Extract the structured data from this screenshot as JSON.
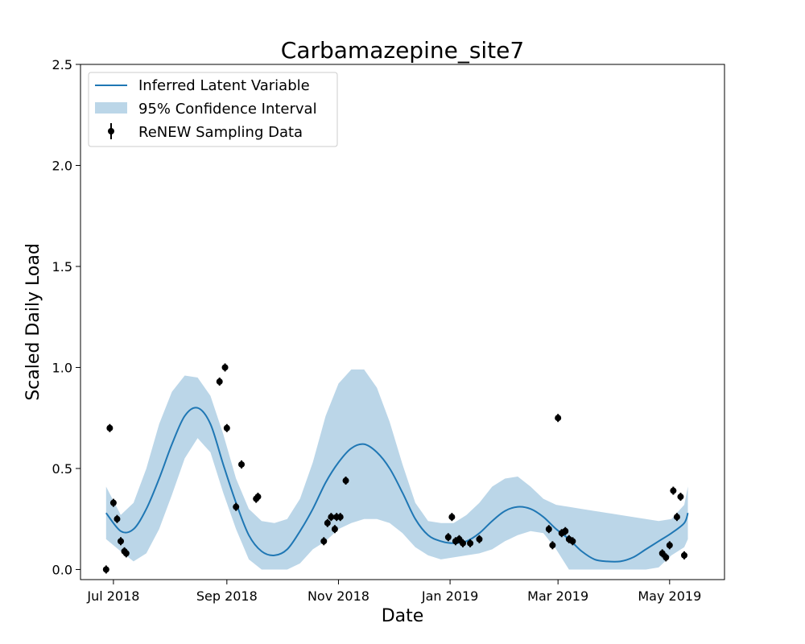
{
  "chart_data": {
    "type": "line",
    "title": "Carbamazepine_site7",
    "xlabel": "Date",
    "ylabel": "Scaled Daily Load",
    "xlim": [
      "2018-06-13",
      "2019-05-31"
    ],
    "ylim": [
      -0.05,
      2.5
    ],
    "x_ticks": [
      "2018-07-01",
      "2018-09-01",
      "2018-11-01",
      "2019-01-01",
      "2019-03-01",
      "2019-05-01"
    ],
    "x_tick_labels": [
      "Jul 2018",
      "Sep 2018",
      "Nov 2018",
      "Jan 2019",
      "Mar 2019",
      "May 2019"
    ],
    "y_ticks": [
      0.0,
      0.5,
      1.0,
      1.5,
      2.0,
      2.5
    ],
    "y_tick_labels": [
      "0.0",
      "0.5",
      "1.0",
      "1.5",
      "2.0",
      "2.5"
    ],
    "grid": false,
    "legend_position": "top-left",
    "colors": {
      "latent": "#1f77b4",
      "band": "#1f77b4",
      "data": "#000000"
    },
    "legend": [
      {
        "label": "Inferred Latent Variable",
        "kind": "line"
      },
      {
        "label": "95% Confidence Interval",
        "kind": "band"
      },
      {
        "label": "ReNEW Sampling Data",
        "kind": "errorbar"
      }
    ],
    "series": [
      {
        "name": "Inferred Latent Variable",
        "type": "line",
        "x": [
          "2018-06-27",
          "2018-07-05",
          "2018-07-12",
          "2018-07-19",
          "2018-07-26",
          "2018-08-02",
          "2018-08-09",
          "2018-08-16",
          "2018-08-23",
          "2018-08-30",
          "2018-09-06",
          "2018-09-13",
          "2018-09-20",
          "2018-09-27",
          "2018-10-04",
          "2018-10-11",
          "2018-10-18",
          "2018-10-25",
          "2018-11-01",
          "2018-11-08",
          "2018-11-15",
          "2018-11-22",
          "2018-11-29",
          "2018-12-06",
          "2018-12-13",
          "2018-12-20",
          "2018-12-27",
          "2019-01-03",
          "2019-01-10",
          "2019-01-17",
          "2019-01-24",
          "2019-01-31",
          "2019-02-07",
          "2019-02-14",
          "2019-02-21",
          "2019-02-28",
          "2019-03-07",
          "2019-03-14",
          "2019-03-21",
          "2019-03-28",
          "2019-04-04",
          "2019-04-11",
          "2019-04-18",
          "2019-04-25",
          "2019-05-02",
          "2019-05-09",
          "2019-05-11"
        ],
        "y": [
          0.28,
          0.19,
          0.2,
          0.3,
          0.45,
          0.62,
          0.76,
          0.8,
          0.72,
          0.52,
          0.33,
          0.17,
          0.09,
          0.07,
          0.1,
          0.19,
          0.3,
          0.43,
          0.53,
          0.6,
          0.62,
          0.58,
          0.5,
          0.38,
          0.25,
          0.17,
          0.14,
          0.13,
          0.14,
          0.18,
          0.24,
          0.29,
          0.31,
          0.3,
          0.26,
          0.2,
          0.15,
          0.09,
          0.05,
          0.04,
          0.04,
          0.06,
          0.1,
          0.14,
          0.18,
          0.23,
          0.28
        ]
      },
      {
        "name": "95% Confidence Interval",
        "type": "area",
        "x": [
          "2018-06-27",
          "2018-07-05",
          "2018-07-12",
          "2018-07-19",
          "2018-07-26",
          "2018-08-02",
          "2018-08-09",
          "2018-08-16",
          "2018-08-23",
          "2018-08-30",
          "2018-09-06",
          "2018-09-13",
          "2018-09-20",
          "2018-09-27",
          "2018-10-04",
          "2018-10-11",
          "2018-10-18",
          "2018-10-25",
          "2018-11-01",
          "2018-11-08",
          "2018-11-15",
          "2018-11-22",
          "2018-11-29",
          "2018-12-06",
          "2018-12-13",
          "2018-12-20",
          "2018-12-27",
          "2019-01-03",
          "2019-01-10",
          "2019-01-17",
          "2019-01-24",
          "2019-01-31",
          "2019-02-07",
          "2019-02-14",
          "2019-02-21",
          "2019-02-28",
          "2019-03-07",
          "2019-03-14",
          "2019-03-21",
          "2019-03-28",
          "2019-04-04",
          "2019-04-11",
          "2019-04-18",
          "2019-04-25",
          "2019-05-02",
          "2019-05-09",
          "2019-05-11"
        ],
        "upper": [
          0.41,
          0.27,
          0.33,
          0.5,
          0.72,
          0.88,
          0.96,
          0.95,
          0.86,
          0.67,
          0.45,
          0.3,
          0.24,
          0.23,
          0.25,
          0.35,
          0.53,
          0.76,
          0.92,
          0.99,
          0.99,
          0.9,
          0.73,
          0.52,
          0.33,
          0.24,
          0.23,
          0.23,
          0.27,
          0.33,
          0.41,
          0.45,
          0.46,
          0.41,
          0.35,
          0.32,
          0.31,
          0.3,
          0.29,
          0.28,
          0.27,
          0.26,
          0.25,
          0.24,
          0.25,
          0.32,
          0.41
        ],
        "lower": [
          0.15,
          0.09,
          0.04,
          0.08,
          0.2,
          0.37,
          0.55,
          0.65,
          0.58,
          0.38,
          0.2,
          0.05,
          0.0,
          0.0,
          0.0,
          0.03,
          0.1,
          0.14,
          0.2,
          0.23,
          0.25,
          0.25,
          0.23,
          0.18,
          0.11,
          0.07,
          0.05,
          0.06,
          0.07,
          0.08,
          0.1,
          0.14,
          0.17,
          0.19,
          0.18,
          0.1,
          0.0,
          0.0,
          0.0,
          0.0,
          0.0,
          0.0,
          0.0,
          0.01,
          0.07,
          0.11,
          0.15
        ]
      },
      {
        "name": "ReNEW Sampling Data",
        "type": "scatter",
        "points": [
          {
            "x": "2018-06-27",
            "y": 0.0
          },
          {
            "x": "2018-06-29",
            "y": 0.7
          },
          {
            "x": "2018-07-01",
            "y": 0.33
          },
          {
            "x": "2018-07-03",
            "y": 0.25
          },
          {
            "x": "2018-07-05",
            "y": 0.14
          },
          {
            "x": "2018-07-07",
            "y": 0.09
          },
          {
            "x": "2018-07-08",
            "y": 0.08
          },
          {
            "x": "2018-08-28",
            "y": 0.93
          },
          {
            "x": "2018-08-31",
            "y": 1.0
          },
          {
            "x": "2018-09-01",
            "y": 0.7
          },
          {
            "x": "2018-09-06",
            "y": 0.31
          },
          {
            "x": "2018-09-09",
            "y": 0.52
          },
          {
            "x": "2018-09-17",
            "y": 0.35
          },
          {
            "x": "2018-09-18",
            "y": 0.36
          },
          {
            "x": "2018-10-24",
            "y": 0.14
          },
          {
            "x": "2018-10-26",
            "y": 0.23
          },
          {
            "x": "2018-10-28",
            "y": 0.26
          },
          {
            "x": "2018-10-30",
            "y": 0.2
          },
          {
            "x": "2018-10-31",
            "y": 0.26
          },
          {
            "x": "2018-11-02",
            "y": 0.26
          },
          {
            "x": "2018-11-05",
            "y": 0.44
          },
          {
            "x": "2018-12-31",
            "y": 0.16
          },
          {
            "x": "2019-01-02",
            "y": 0.26
          },
          {
            "x": "2019-01-04",
            "y": 0.14
          },
          {
            "x": "2019-01-06",
            "y": 0.15
          },
          {
            "x": "2019-01-08",
            "y": 0.13
          },
          {
            "x": "2019-01-12",
            "y": 0.13
          },
          {
            "x": "2019-01-17",
            "y": 0.15
          },
          {
            "x": "2019-02-24",
            "y": 0.2
          },
          {
            "x": "2019-02-26",
            "y": 0.12
          },
          {
            "x": "2019-03-01",
            "y": 0.75
          },
          {
            "x": "2019-03-03",
            "y": 0.18
          },
          {
            "x": "2019-03-05",
            "y": 0.19
          },
          {
            "x": "2019-03-07",
            "y": 0.15
          },
          {
            "x": "2019-03-09",
            "y": 0.14
          },
          {
            "x": "2019-04-27",
            "y": 0.08
          },
          {
            "x": "2019-04-29",
            "y": 0.06
          },
          {
            "x": "2019-05-01",
            "y": 0.12
          },
          {
            "x": "2019-05-03",
            "y": 0.39
          },
          {
            "x": "2019-05-05",
            "y": 0.26
          },
          {
            "x": "2019-05-07",
            "y": 0.36
          },
          {
            "x": "2019-05-09",
            "y": 0.07
          }
        ]
      }
    ]
  }
}
